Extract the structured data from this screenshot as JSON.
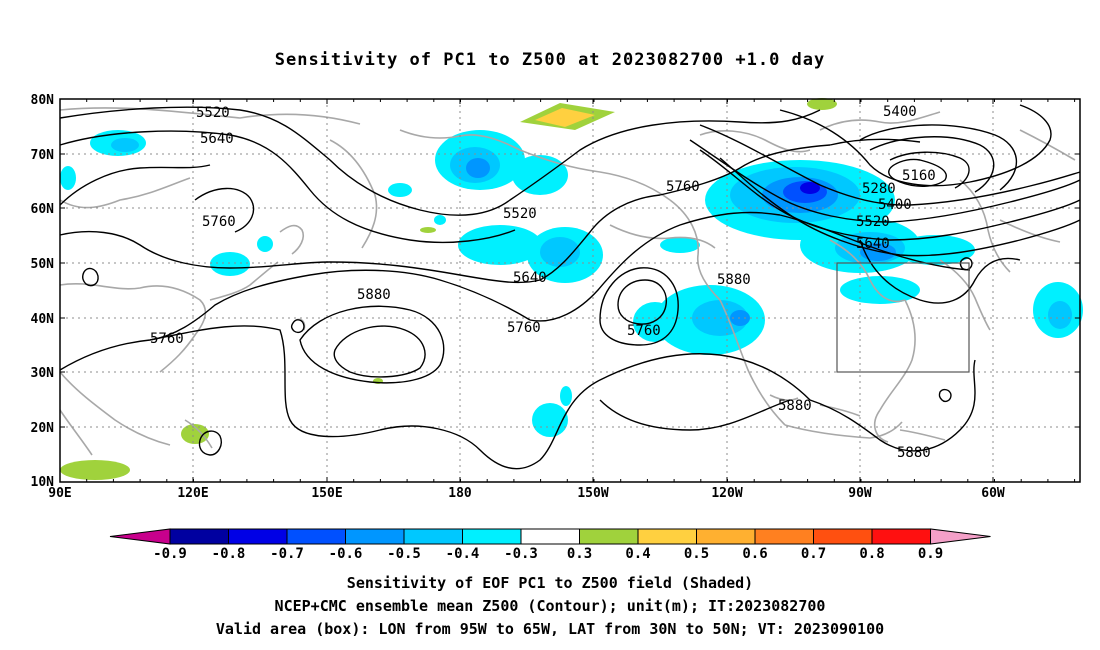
{
  "title": "Sensitivity of PC1 to Z500 at 2023082700 +1.0 day",
  "map": {
    "lon_ticks": [
      "90E",
      "120E",
      "150E",
      "180",
      "150W",
      "120W",
      "90W",
      "60W"
    ],
    "lat_ticks": [
      "80N",
      "70N",
      "60N",
      "50N",
      "40N",
      "30N",
      "20N",
      "10N"
    ],
    "grid": true,
    "valid_box": {
      "lon": [
        "95W",
        "65W"
      ],
      "lat": [
        "30N",
        "50N"
      ]
    },
    "contour_labels": [
      "5520",
      "5640",
      "5760",
      "5760",
      "5520",
      "5640",
      "5760",
      "5760",
      "5880",
      "5880",
      "5880",
      "5880",
      "5400",
      "5160",
      "5280",
      "5400",
      "5520",
      "5640",
      "5760"
    ]
  },
  "colorbar": {
    "labels": [
      "-0.9",
      "-0.8",
      "-0.7",
      "-0.6",
      "-0.5",
      "-0.4",
      "-0.3",
      "0.3",
      "0.4",
      "0.5",
      "0.6",
      "0.7",
      "0.8",
      "0.9"
    ],
    "colors": [
      "#c8008c",
      "#0000a0",
      "#0000e6",
      "#0050ff",
      "#0096ff",
      "#00c8ff",
      "#00f0ff",
      "#ffffff",
      "#a0d23c",
      "#ffd040",
      "#ffb030",
      "#ff8020",
      "#ff5010",
      "#ff1010",
      "#f4a0c8"
    ]
  },
  "captions": [
    "Sensitivity of EOF PC1 to Z500 field (Shaded)",
    "NCEP+CMC ensemble mean Z500 (Contour); unit(m); IT:2023082700",
    "Valid area (box): LON from 95W to 65W, LAT from 30N to 50N; VT: 2023090100"
  ]
}
